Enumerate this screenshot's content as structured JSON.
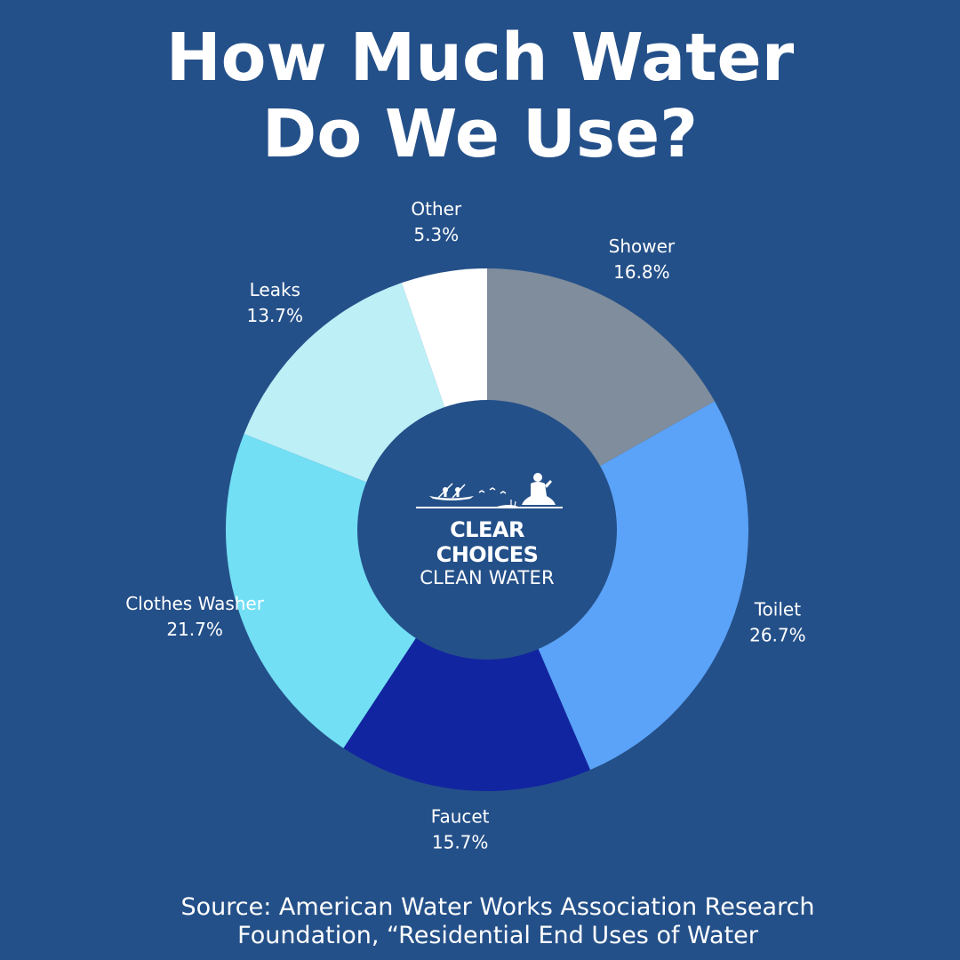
{
  "title": {
    "line1": "How Much Water",
    "line2": "Do We Use?"
  },
  "logo": {
    "line1": "CLEAR CHOICES",
    "line2": "CLEAN WATER",
    "icon": "kayak-and-meditating-figure-icon"
  },
  "source": {
    "line1": "Source: American Water Works Association Research",
    "line2": "Foundation, “Residential End Uses of Water"
  },
  "chart_data": {
    "type": "pie",
    "variant": "donut",
    "categories": [
      "Shower",
      "Toilet",
      "Faucet",
      "Clothes Washer",
      "Leaks",
      "Other"
    ],
    "values": [
      16.8,
      26.7,
      15.7,
      21.7,
      13.7,
      5.3
    ],
    "value_labels": [
      "16.8%",
      "26.7%",
      "15.7%",
      "21.7%",
      "13.7%",
      "5.3%"
    ],
    "colors": [
      "#808d9c",
      "#5ba3f8",
      "#1225a0",
      "#72dff5",
      "#bdeff7",
      "#ffffff"
    ],
    "unit": "%",
    "legend": "none",
    "labels": "outside-slices"
  },
  "colors": {
    "background": "#245089",
    "text": "#ffffff"
  }
}
